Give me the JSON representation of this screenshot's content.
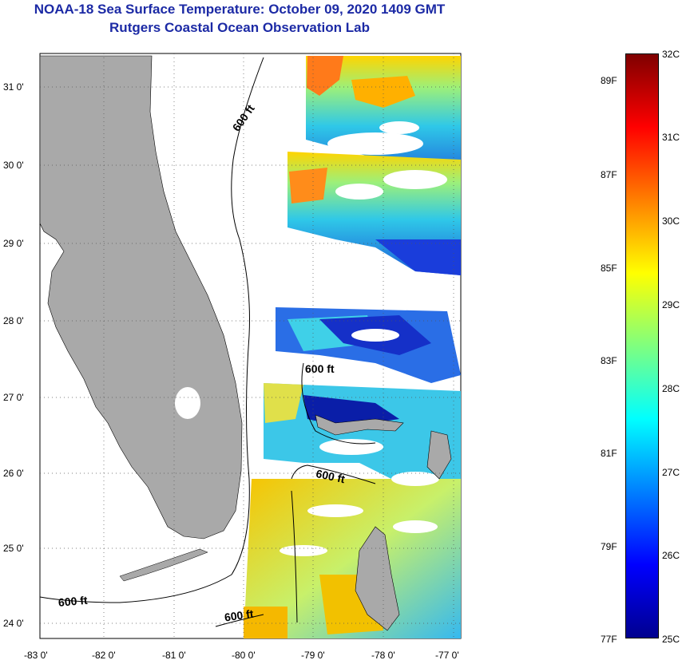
{
  "header": {
    "title": "NOAA-18 Sea Surface Temperature:  October 09, 2020 1409 GMT",
    "subtitle": "Rutgers Coastal Ocean Observation Lab"
  },
  "map": {
    "lat_labels": [
      "31 0'",
      "30 0'",
      "29 0'",
      "28 0'",
      "27 0'",
      "26 0'",
      "25 0'",
      "24 0'"
    ],
    "lon_labels": [
      "-83 0'",
      "-82 0'",
      "-81 0'",
      "-80 0'",
      "-79 0'",
      "-78 0'",
      "-77 0'"
    ],
    "contour_labels": [
      "600 ft",
      "600 ft",
      "600 ft",
      "600 ft",
      "600 ft"
    ],
    "land_color": "#a9a9a9",
    "no_data_color": "#ffffff"
  },
  "colorbar": {
    "celsius": [
      "32C",
      "31C",
      "30C",
      "29C",
      "28C",
      "27C",
      "26C",
      "25C"
    ],
    "fahrenheit": [
      "89F",
      "87F",
      "85F",
      "83F",
      "81F",
      "79F",
      "77F"
    ],
    "colors": [
      "#7f0000",
      "#ff0000",
      "#ff7f00",
      "#ffff00",
      "#7fff7f",
      "#00ffff",
      "#007fff",
      "#0000ff",
      "#00008f"
    ]
  }
}
